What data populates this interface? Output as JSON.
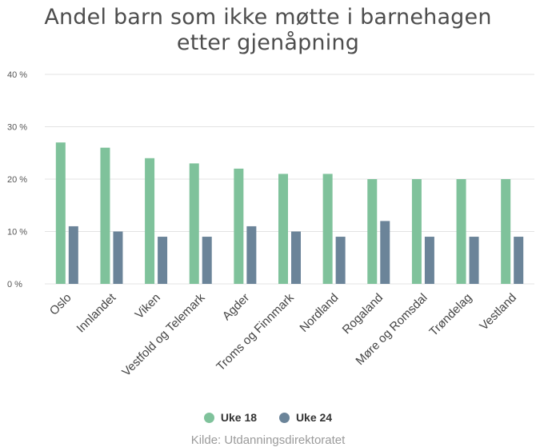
{
  "chart_data": {
    "type": "bar",
    "title_lines": [
      "Andel barn som ikke møtte i barnehagen",
      "etter gjenåpning"
    ],
    "source": "Kilde: Utdanningsdirektoratet",
    "categories": [
      "Oslo",
      "Innlandet",
      "Viken",
      "Vestfold og Telemark",
      "Agder",
      "Troms og Finnmark",
      "Nordland",
      "Rogaland",
      "Møre og Romsdal",
      "Trøndelag",
      "Vestland"
    ],
    "series": [
      {
        "name": "Uke 18",
        "color": "#7fc29b",
        "values": [
          27,
          26,
          24,
          23,
          22,
          21,
          21,
          20,
          20,
          20,
          20
        ]
      },
      {
        "name": "Uke 24",
        "color": "#6b8499",
        "values": [
          11,
          10,
          9,
          9,
          11,
          10,
          9,
          12,
          9,
          9,
          9
        ]
      }
    ],
    "yticks": [
      "0 %",
      "10 %",
      "20 %",
      "30 %",
      "40 %"
    ],
    "ylim": [
      0,
      40
    ],
    "grid": true,
    "legend_position": "bottom-center"
  }
}
